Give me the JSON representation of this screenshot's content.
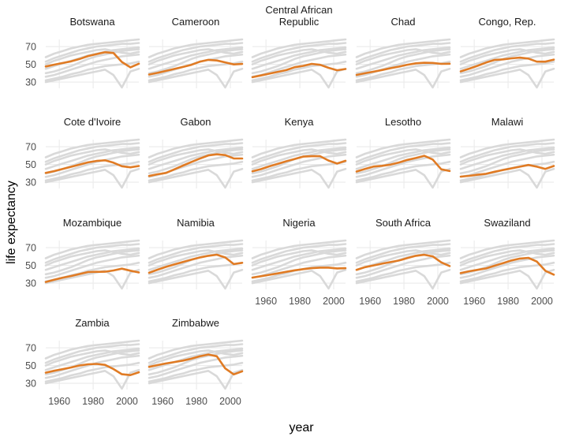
{
  "chart_data": {
    "type": "line",
    "xlabel": "year",
    "ylabel": "life expectancy",
    "xlim": [
      1952,
      2007
    ],
    "ylim": [
      23,
      78
    ],
    "y_ticks": [
      30,
      50,
      70
    ],
    "x_ticks": [
      1960,
      1980,
      2000
    ],
    "grid": true,
    "facet_columns": 5,
    "highlight_color": "#e07b24",
    "background_color": "#d9d9d9",
    "years": [
      1952,
      1957,
      1962,
      1967,
      1972,
      1977,
      1982,
      1987,
      1992,
      1997,
      2002,
      2007
    ],
    "background_series": [
      [
        58,
        62,
        65,
        68,
        70,
        72,
        73,
        74,
        75,
        76,
        77,
        78
      ],
      [
        53,
        57,
        60,
        63,
        66,
        68,
        70,
        71,
        72,
        73,
        73,
        74
      ],
      [
        45,
        48,
        51,
        54,
        57,
        60,
        62,
        64,
        66,
        67,
        68,
        69
      ],
      [
        40,
        42,
        45,
        48,
        52,
        56,
        59,
        61,
        63,
        65,
        66,
        67
      ],
      [
        36,
        38,
        41,
        44,
        47,
        50,
        53,
        55,
        57,
        59,
        60,
        61
      ],
      [
        32,
        34,
        36,
        39,
        41,
        44,
        46,
        48,
        49,
        50,
        51,
        53
      ],
      [
        30,
        32,
        34,
        36,
        38,
        40,
        42,
        44,
        38,
        24,
        42,
        45
      ],
      [
        50,
        54,
        57,
        60,
        62,
        64,
        66,
        67,
        65,
        63,
        62,
        64
      ]
    ],
    "series": [
      {
        "name": "Botswana",
        "values": [
          47.6,
          49.6,
          51.5,
          53.3,
          56.0,
          59.3,
          61.5,
          63.6,
          62.7,
          52.6,
          46.6,
          50.7
        ]
      },
      {
        "name": "Cameroon",
        "values": [
          38.5,
          40.4,
          42.6,
          44.8,
          47.0,
          49.4,
          53.0,
          55.0,
          54.3,
          52.2,
          49.9,
          50.4
        ]
      },
      {
        "name": "Central African\nRepublic",
        "values": [
          35.5,
          37.5,
          39.5,
          41.5,
          43.5,
          46.8,
          48.3,
          50.5,
          49.4,
          46.1,
          43.3,
          44.7
        ]
      },
      {
        "name": "Chad",
        "values": [
          38.1,
          39.9,
          41.7,
          43.6,
          45.6,
          47.4,
          49.5,
          51.1,
          51.7,
          51.6,
          50.5,
          50.7
        ]
      },
      {
        "name": "Congo, Rep.",
        "values": [
          42.1,
          45.1,
          48.4,
          52.0,
          54.9,
          55.6,
          56.7,
          57.5,
          56.4,
          52.96,
          52.97,
          55.3
        ]
      },
      {
        "name": "Cote d'Ivoire",
        "values": [
          40.5,
          42.5,
          44.9,
          47.4,
          49.8,
          52.4,
          53.98,
          54.7,
          52.0,
          47.99,
          46.8,
          48.3
        ]
      },
      {
        "name": "Gabon",
        "values": [
          37.0,
          38.999,
          40.5,
          44.6,
          48.7,
          52.8,
          56.6,
          60.2,
          61.4,
          60.5,
          56.8,
          56.7
        ]
      },
      {
        "name": "Kenya",
        "values": [
          42.3,
          44.7,
          47.9,
          50.7,
          53.6,
          56.2,
          58.8,
          59.3,
          59.3,
          54.4,
          50.99,
          54.1
        ]
      },
      {
        "name": "Lesotho",
        "values": [
          42.1,
          45.0,
          47.7,
          48.5,
          49.8,
          52.2,
          55.1,
          57.2,
          59.7,
          55.6,
          44.6,
          42.6
        ]
      },
      {
        "name": "Malawi",
        "values": [
          36.3,
          37.2,
          38.4,
          39.5,
          41.8,
          43.8,
          45.6,
          47.5,
          49.4,
          47.5,
          45.0,
          48.3
        ]
      },
      {
        "name": "Mozambique",
        "values": [
          31.3,
          33.8,
          36.2,
          38.1,
          40.3,
          42.5,
          42.8,
          42.9,
          44.3,
          46.3,
          44.0,
          42.1
        ]
      },
      {
        "name": "Namibia",
        "values": [
          41.7,
          45.2,
          48.4,
          51.2,
          53.9,
          56.4,
          58.97,
          60.8,
          61.99,
          58.9,
          51.5,
          52.9
        ]
      },
      {
        "name": "Nigeria",
        "values": [
          36.3,
          37.8,
          39.4,
          41.0,
          42.8,
          44.5,
          45.8,
          46.9,
          47.5,
          47.5,
          46.6,
          46.9
        ]
      },
      {
        "name": "South Africa",
        "values": [
          45.0,
          47.98,
          49.95,
          51.9,
          53.7,
          55.5,
          58.2,
          60.8,
          61.9,
          60.2,
          53.4,
          49.3
        ]
      },
      {
        "name": "Swaziland",
        "values": [
          41.4,
          43.4,
          44.99,
          46.6,
          49.6,
          52.5,
          55.6,
          57.7,
          58.5,
          54.3,
          43.9,
          39.6
        ]
      },
      {
        "name": "Zambia",
        "values": [
          42.0,
          44.1,
          46.0,
          47.8,
          50.1,
          51.4,
          51.8,
          50.8,
          46.1,
          40.2,
          39.2,
          42.4
        ]
      },
      {
        "name": "Zimbabwe",
        "values": [
          48.5,
          50.5,
          52.4,
          53.99,
          55.6,
          57.7,
          60.4,
          62.4,
          60.4,
          46.8,
          39.99,
          43.5
        ]
      }
    ]
  }
}
